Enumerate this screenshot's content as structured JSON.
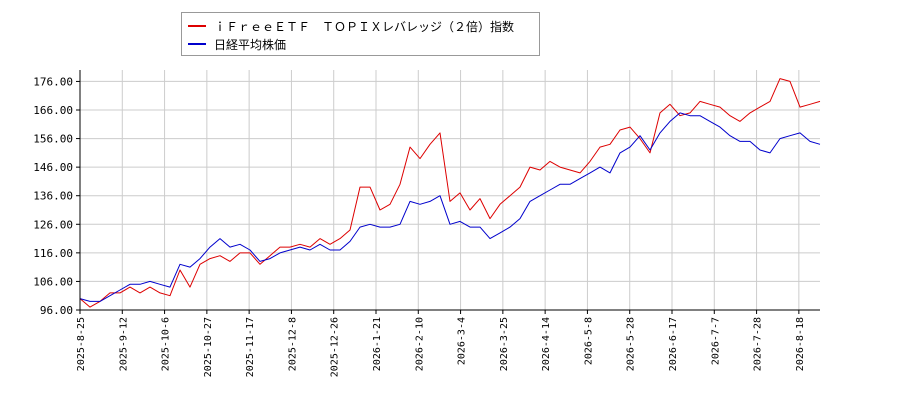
{
  "chart_data": {
    "type": "line",
    "legend": "top-left",
    "grid": true,
    "ylim": [
      96.0,
      180.0
    ],
    "yticks": [
      "96.00",
      "106.00",
      "116.00",
      "126.00",
      "136.00",
      "146.00",
      "156.00",
      "166.00",
      "176.00"
    ],
    "xticks": [
      "2025-8-25",
      "2025-9-12",
      "2025-10-6",
      "2025-10-27",
      "2025-11-17",
      "2025-12-8",
      "2025-12-26",
      "2026-1-21",
      "2026-2-10",
      "2026-3-4",
      "2026-3-25",
      "2026-4-14",
      "2026-5-8",
      "2026-5-28",
      "2026-6-17",
      "2026-7-7",
      "2026-7-28",
      "2026-8-18"
    ],
    "series": [
      {
        "name": "ｉＦｒｅｅＥＴＦ　ＴＯＰＩＸレバレッジ（２倍）指数",
        "color": "#dd0000",
        "values": [
          100,
          97,
          99,
          102,
          102,
          104,
          102,
          104,
          102,
          101,
          110,
          104,
          112,
          114,
          115,
          113,
          116,
          116,
          112,
          115,
          118,
          118,
          119,
          118,
          121,
          119,
          121,
          124,
          139,
          139,
          131,
          133,
          140,
          153,
          149,
          154,
          158,
          134,
          137,
          131,
          135,
          128,
          133,
          136,
          139,
          146,
          145,
          148,
          146,
          145,
          144,
          148,
          153,
          154,
          159,
          160,
          156,
          151,
          165,
          168,
          164,
          165,
          169,
          168,
          167,
          164,
          162,
          165,
          167,
          169,
          177,
          176,
          167,
          168,
          169
        ]
      },
      {
        "name": "日経平均株価",
        "color": "#0000cc",
        "values": [
          100,
          99,
          99,
          101,
          103,
          105,
          105,
          106,
          105,
          104,
          112,
          111,
          114,
          118,
          121,
          118,
          119,
          117,
          113,
          114,
          116,
          117,
          118,
          117,
          119,
          117,
          117,
          120,
          125,
          126,
          125,
          125,
          126,
          134,
          133,
          134,
          136,
          126,
          127,
          125,
          125,
          121,
          123,
          125,
          128,
          134,
          136,
          138,
          140,
          140,
          142,
          144,
          146,
          144,
          151,
          153,
          157,
          152,
          158,
          162,
          165,
          164,
          164,
          162,
          160,
          157,
          155,
          155,
          152,
          151,
          156,
          157,
          158,
          155,
          154
        ]
      }
    ]
  }
}
